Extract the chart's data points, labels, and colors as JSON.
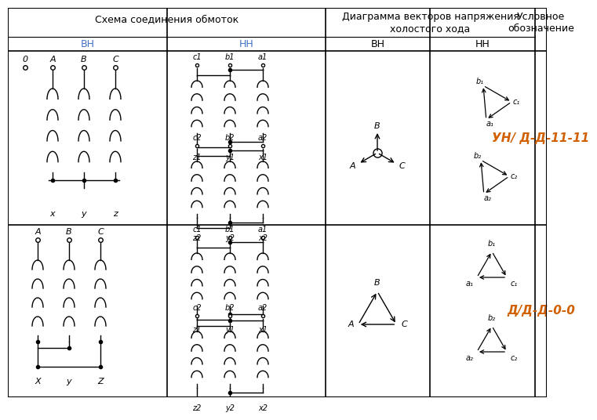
{
  "header_schema": "Схема соединения обмоток",
  "header_diagram": "Диаграмма векторов напряжения\nхолостого хода",
  "header_symbol": "Условное\nобозначение",
  "header_VN": "ВН",
  "header_NN": "НН",
  "label1": "УН/ Д-Д-11-11",
  "label2": "Д/Д-Д-0-0",
  "bg_color": "#ffffff",
  "line_color": "#000000",
  "header_color": "#4472C4",
  "label_color": "#D06000",
  "C": [
    0,
    203,
    405,
    538,
    672,
    687
  ],
  "R": [
    0,
    55,
    277,
    497
  ]
}
